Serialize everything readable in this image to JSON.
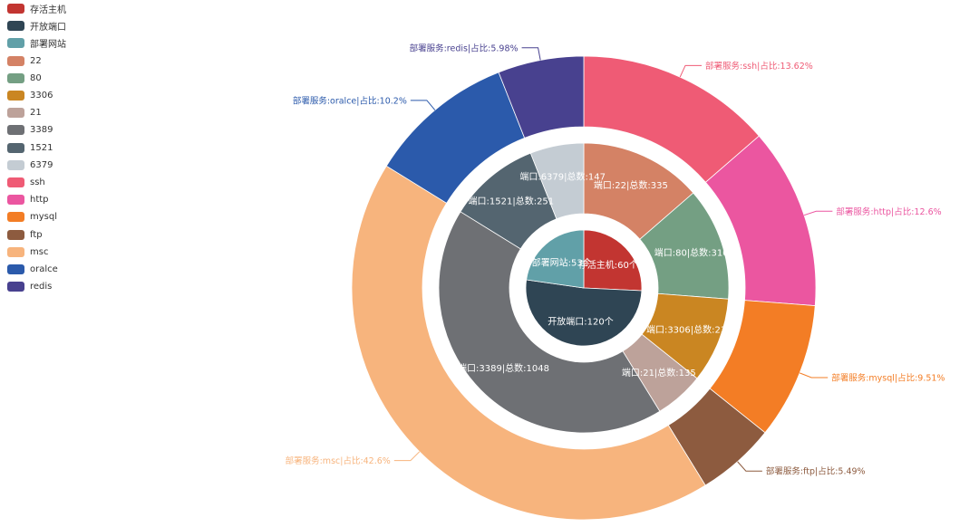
{
  "chart_data": {
    "type": "pie",
    "legend_position": "top-left",
    "legend": [
      {
        "name": "存活主机",
        "color": "#c23531"
      },
      {
        "name": "开放端口",
        "color": "#2f4554"
      },
      {
        "name": "部署网站",
        "color": "#61a0a8"
      },
      {
        "name": "22",
        "color": "#d48265"
      },
      {
        "name": "80",
        "color": "#749f83"
      },
      {
        "name": "3306",
        "color": "#ca8622"
      },
      {
        "name": "21",
        "color": "#bda29a"
      },
      {
        "name": "3389",
        "color": "#6e7074"
      },
      {
        "name": "1521",
        "color": "#546570"
      },
      {
        "name": "6379",
        "color": "#c4ccd3"
      },
      {
        "name": "ssh",
        "color": "#ef5b75"
      },
      {
        "name": "http",
        "color": "#eb56a0"
      },
      {
        "name": "mysql",
        "color": "#f37d25"
      },
      {
        "name": "ftp",
        "color": "#8d5b3f"
      },
      {
        "name": "msc",
        "color": "#f7b47d"
      },
      {
        "name": "oralce",
        "color": "#2b5aab"
      },
      {
        "name": "redis",
        "color": "#48418f"
      }
    ],
    "rings": [
      {
        "name": "inner",
        "slices": [
          {
            "name": "存活主机",
            "value": 60,
            "color": "#c23531",
            "label": "存活主机:60个"
          },
          {
            "name": "开放端口",
            "value": 120,
            "color": "#2f4554",
            "label": "开放端口:120个"
          },
          {
            "name": "部署网站",
            "value": 53,
            "color": "#61a0a8",
            "label": "部署网站:53个"
          }
        ]
      },
      {
        "name": "middle",
        "slices": [
          {
            "name": "22",
            "value": 335,
            "color": "#d48265",
            "label": "端口:22|总数:335"
          },
          {
            "name": "80",
            "value": 310,
            "color": "#749f83",
            "label": "端口:80|总数:310"
          },
          {
            "name": "3306",
            "value": 234,
            "color": "#ca8622",
            "label": "端口:3306|总数:234"
          },
          {
            "name": "21",
            "value": 135,
            "color": "#bda29a",
            "label": "端口:21|总数:135"
          },
          {
            "name": "3389",
            "value": 1048,
            "color": "#6e7074",
            "label": "端口:3389|总数:1048"
          },
          {
            "name": "1521",
            "value": 251,
            "color": "#546570",
            "label": "端口:1521|总数:251"
          },
          {
            "name": "6379",
            "value": 147,
            "color": "#c4ccd3",
            "label": "端口:6379|总数:147"
          }
        ]
      },
      {
        "name": "outer",
        "slices": [
          {
            "name": "ssh",
            "value": 13.62,
            "color": "#ef5b75",
            "label": "部署服务:ssh|占比:13.62%"
          },
          {
            "name": "http",
            "value": 12.6,
            "color": "#eb56a0",
            "label": "部署服务:http|占比:12.6%"
          },
          {
            "name": "mysql",
            "value": 9.51,
            "color": "#f37d25",
            "label": "部署服务:mysql|占比:9.51%"
          },
          {
            "name": "ftp",
            "value": 5.49,
            "color": "#8d5b3f",
            "label": "部署服务:ftp|占比:5.49%"
          },
          {
            "name": "msc",
            "value": 42.6,
            "color": "#f7b47d",
            "label": "部署服务:msc|占比:42.6%"
          },
          {
            "name": "oralce",
            "value": 10.2,
            "color": "#2b5aab",
            "label": "部署服务:oralce|占比:10.2%"
          },
          {
            "name": "redis",
            "value": 5.98,
            "color": "#48418f",
            "label": "部署服务:redis|占比:5.98%"
          }
        ]
      }
    ]
  }
}
